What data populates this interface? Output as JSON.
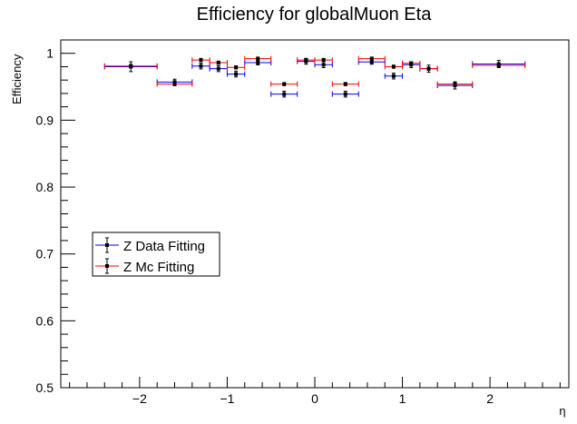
{
  "chart_data": {
    "type": "scatter",
    "title": "Efficiency for globalMuon Eta",
    "xlabel": "η",
    "ylabel": "Efficiency",
    "xlim": [
      -2.9,
      2.9
    ],
    "ylim": [
      0.5,
      1.02
    ],
    "x_ticks": [
      -2,
      -1,
      0,
      1,
      2
    ],
    "x_tick_labels": [
      "−2",
      "−1",
      "0",
      "1",
      "2"
    ],
    "y_ticks": [
      0.5,
      0.6,
      0.7,
      0.8,
      0.9,
      1.0
    ],
    "y_tick_labels": [
      "0.5",
      "0.6",
      "0.7",
      "0.8",
      "0.9",
      "1"
    ],
    "grid": false,
    "legend_position": "left",
    "series": [
      {
        "name": "Z Data Fitting",
        "color": "#0000ff",
        "points": [
          {
            "x": -2.1,
            "xerr": 0.3,
            "y": 0.98,
            "yerr": 0.006
          },
          {
            "x": -1.6,
            "xerr": 0.2,
            "y": 0.957,
            "yerr": 0.003
          },
          {
            "x": -1.3,
            "xerr": 0.1,
            "y": 0.981,
            "yerr": 0.003
          },
          {
            "x": -1.1,
            "xerr": 0.1,
            "y": 0.977,
            "yerr": 0.003
          },
          {
            "x": -0.9,
            "xerr": 0.1,
            "y": 0.969,
            "yerr": 0.003
          },
          {
            "x": -0.65,
            "xerr": 0.15,
            "y": 0.986,
            "yerr": 0.002
          },
          {
            "x": -0.35,
            "xerr": 0.15,
            "y": 0.939,
            "yerr": 0.003
          },
          {
            "x": -0.1,
            "xerr": 0.1,
            "y": 0.988,
            "yerr": 0.003
          },
          {
            "x": 0.1,
            "xerr": 0.1,
            "y": 0.983,
            "yerr": 0.003
          },
          {
            "x": 0.35,
            "xerr": 0.15,
            "y": 0.939,
            "yerr": 0.003
          },
          {
            "x": 0.65,
            "xerr": 0.15,
            "y": 0.987,
            "yerr": 0.002
          },
          {
            "x": 0.9,
            "xerr": 0.1,
            "y": 0.966,
            "yerr": 0.003
          },
          {
            "x": 1.1,
            "xerr": 0.1,
            "y": 0.983,
            "yerr": 0.003
          },
          {
            "x": 1.3,
            "xerr": 0.1,
            "y": 0.977,
            "yerr": 0.004
          },
          {
            "x": 1.6,
            "xerr": 0.2,
            "y": 0.952,
            "yerr": 0.004
          },
          {
            "x": 2.1,
            "xerr": 0.3,
            "y": 0.984,
            "yerr": 0.004
          }
        ]
      },
      {
        "name": "Z Mc Fitting",
        "color": "#ff0000",
        "points": [
          {
            "x": -2.1,
            "xerr": 0.3,
            "y": 0.981,
            "yerr": 0.001
          },
          {
            "x": -1.6,
            "xerr": 0.2,
            "y": 0.954,
            "yerr": 0.001
          },
          {
            "x": -1.3,
            "xerr": 0.1,
            "y": 0.99,
            "yerr": 0.001
          },
          {
            "x": -1.1,
            "xerr": 0.1,
            "y": 0.986,
            "yerr": 0.001
          },
          {
            "x": -0.9,
            "xerr": 0.1,
            "y": 0.979,
            "yerr": 0.001
          },
          {
            "x": -0.65,
            "xerr": 0.15,
            "y": 0.992,
            "yerr": 0.001
          },
          {
            "x": -0.35,
            "xerr": 0.15,
            "y": 0.954,
            "yerr": 0.001
          },
          {
            "x": -0.1,
            "xerr": 0.1,
            "y": 0.99,
            "yerr": 0.001
          },
          {
            "x": 0.1,
            "xerr": 0.1,
            "y": 0.99,
            "yerr": 0.001
          },
          {
            "x": 0.35,
            "xerr": 0.15,
            "y": 0.954,
            "yerr": 0.001
          },
          {
            "x": 0.65,
            "xerr": 0.15,
            "y": 0.992,
            "yerr": 0.001
          },
          {
            "x": 0.9,
            "xerr": 0.1,
            "y": 0.98,
            "yerr": 0.001
          },
          {
            "x": 1.1,
            "xerr": 0.1,
            "y": 0.985,
            "yerr": 0.001
          },
          {
            "x": 1.3,
            "xerr": 0.1,
            "y": 0.977,
            "yerr": 0.001
          },
          {
            "x": 1.6,
            "xerr": 0.2,
            "y": 0.954,
            "yerr": 0.001
          },
          {
            "x": 2.1,
            "xerr": 0.3,
            "y": 0.982,
            "yerr": 0.001
          }
        ]
      }
    ]
  }
}
